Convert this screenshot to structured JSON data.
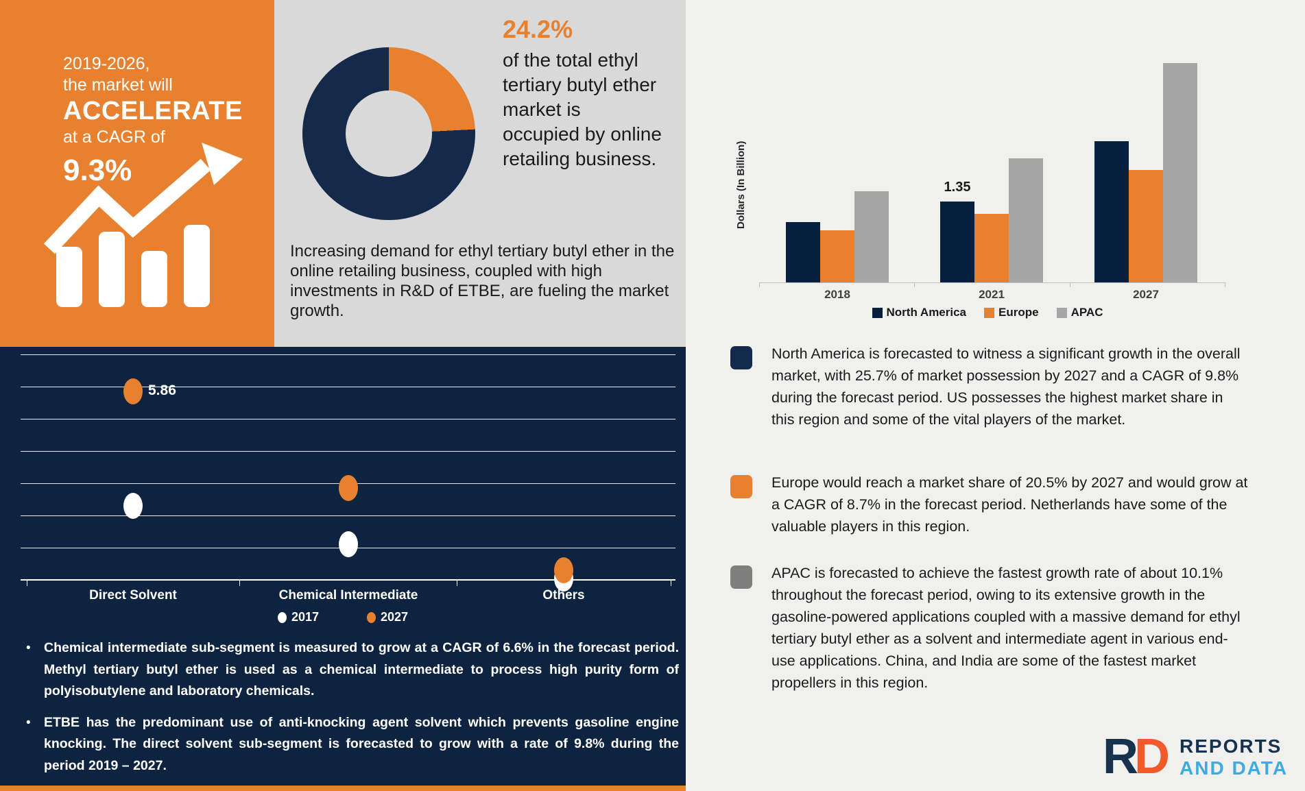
{
  "promo": {
    "line1": "2019-2026,",
    "line2": "the market will",
    "line3": "ACCELERATE",
    "line4": "at a CAGR of",
    "line5": "9.3%"
  },
  "donut_section": {
    "highlight_pct": "24.2%",
    "headline": "of the total ethyl tertiary butyl ether market is occupied by online retailing business.",
    "body": "Increasing demand for ethyl tertiary butyl ether in the online retailing business, coupled with high investments in R&D of ETBE, are fueling the market growth."
  },
  "segment_bullets": [
    {
      "text": "Chemical intermediate sub-segment is measured to grow at a CAGR of 6.6% in the forecast period. Methyl tertiary butyl ether is used as a chemical intermediate to process high purity form of polyisobutylene and laboratory chemicals."
    },
    {
      "text": "ETBE has the predominant use of anti-knocking agent solvent which prevents gasoline engine knocking. The direct solvent sub-segment is forecasted to grow with a rate of 9.8% during the period 2019 – 2027."
    }
  ],
  "region_bullets": [
    {
      "color": "#122A4C",
      "text": "North America is forecasted to witness a significant growth in the overall market, with 25.7% of market possession by 2027 and a CAGR of 9.8% during the forecast period. US possesses the highest market share in this region and some of the vital players of the market."
    },
    {
      "color": "#E8812F",
      "text": "Europe would reach a market share of 20.5% by 2027 and would grow at a CAGR of 8.7% in the forecast period. Netherlands have some of the valuable players in this region."
    },
    {
      "color": "#7F7F7F",
      "text": "APAC is forecasted to achieve the fastest growth rate of about 10.1% throughout the forecast period, owing to its extensive growth in the gasoline-powered applications coupled with a massive demand for ethyl tertiary butyl ether as a solvent and intermediate agent in various end-use applications. China, and India are some of the fastest market propellers in this region."
    }
  ],
  "logo": {
    "mark_r": "R",
    "mark_d": "D",
    "line1": "REPORTS",
    "line2": "AND DATA"
  },
  "colors": {
    "orange": "#E8812F",
    "navy_panel": "#0E2340",
    "navy_bar": "#07203E",
    "gray_panel": "#D9D9D9",
    "light_panel": "#F0F0EF",
    "gray_bar": "#A6A6A6",
    "gray_bullet": "#7F7F7F",
    "logo_navy": "#16324F",
    "logo_orange": "#F15A2B",
    "logo_blue": "#3FA9E0"
  },
  "chart_data": [
    {
      "type": "bar",
      "ylabel": "Dollars (In Billion)",
      "categories": [
        "2018",
        "2021",
        "2027"
      ],
      "series": [
        {
          "name": "North America",
          "color": "#07203E",
          "values": [
            1.01,
            1.35,
            2.36
          ]
        },
        {
          "name": "Europe",
          "color": "#E8812F",
          "values": [
            0.87,
            1.14,
            1.88
          ]
        },
        {
          "name": "APAC",
          "color": "#A6A6A6",
          "values": [
            1.52,
            2.07,
            3.66
          ]
        }
      ],
      "data_labels": [
        {
          "category": "2021",
          "series": "North America",
          "text": "1.35"
        }
      ],
      "legend_position": "bottom",
      "ylim": [
        0,
        4
      ]
    },
    {
      "type": "scatter",
      "categories": [
        "Direct Solvent",
        "Chemical Intermediate",
        "Others"
      ],
      "series": [
        {
          "name": "2017",
          "color": "#FFFFFF",
          "values": [
            2.3,
            1.1,
            0.05
          ]
        },
        {
          "name": "2027",
          "color": "#E8812F",
          "values": [
            5.86,
            2.85,
            0.3
          ]
        }
      ],
      "data_labels": [
        {
          "category": "Direct Solvent",
          "series": "2027",
          "text": "5.86"
        }
      ],
      "gridline_count": 7,
      "ylim": [
        0,
        7.2
      ],
      "legend_position": "bottom"
    },
    {
      "type": "pie",
      "donut": true,
      "slices": [
        {
          "label": "online retailing business",
          "value": 24.2,
          "color": "#E8812F"
        },
        {
          "label": "rest of market",
          "value": 75.8,
          "color": "#15294A"
        }
      ]
    }
  ]
}
